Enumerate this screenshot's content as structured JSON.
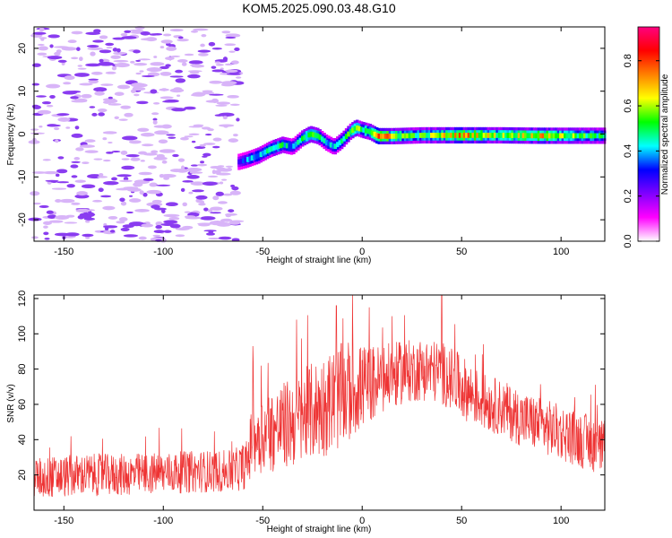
{
  "title": "KOM5.2025.090.03.48.G10",
  "colorbar": {
    "label": "Normalized spectral amplitude",
    "range": [
      0,
      0.95
    ],
    "ticks": [
      "0.0",
      "0.2",
      "0.4",
      "0.6",
      "0.8"
    ],
    "colormap": [
      "#ffffff",
      "#ff00ff",
      "#8000ff",
      "#0000ff",
      "#00ffff",
      "#00ff00",
      "#ffff00",
      "#ff8000",
      "#ff0000",
      "#ff0080"
    ]
  },
  "chart_data": [
    {
      "type": "heatmap",
      "xlabel": "Height of straight line (km)",
      "ylabel": "Frequency (Hz)",
      "xlim": [
        -165,
        122
      ],
      "ylim": [
        -25,
        25
      ],
      "xticks": [
        "-150",
        "-100",
        "-50",
        "0",
        "50",
        "100"
      ],
      "yticks": [
        "-20",
        "-10",
        "0",
        "10",
        "20"
      ],
      "noise_region": {
        "x": [
          -165,
          -62
        ],
        "amplitude": 0.12
      },
      "ridge": {
        "x": [
          -62,
          -58,
          -52,
          -46,
          -40,
          -35,
          -30,
          -26,
          -22,
          -18,
          -14,
          -10,
          -6,
          -3,
          0,
          4,
          8,
          15,
          30,
          50,
          70,
          90,
          110,
          122
        ],
        "freq": [
          -6.5,
          -6,
          -5,
          -3.5,
          -2.5,
          -3,
          -1,
          0,
          -0.5,
          -2,
          -3,
          -1.5,
          0.5,
          1.5,
          1,
          0.5,
          -0.5,
          -0.5,
          -0.3,
          -0.3,
          -0.3,
          -0.4,
          -0.4,
          -0.4
        ],
        "amplitude": [
          0.3,
          0.35,
          0.4,
          0.45,
          0.5,
          0.35,
          0.45,
          0.55,
          0.5,
          0.35,
          0.4,
          0.45,
          0.5,
          0.55,
          0.5,
          0.55,
          0.85,
          0.6,
          0.5,
          0.7,
          0.55,
          0.65,
          0.5,
          0.45
        ]
      }
    },
    {
      "type": "line",
      "xlabel": "Height of straight line (km)",
      "ylabel": "SNR (v/v)",
      "xlim": [
        -165,
        122
      ],
      "ylim": [
        0,
        122
      ],
      "xticks": [
        "-150",
        "-100",
        "-50",
        "0",
        "50",
        "100"
      ],
      "yticks": [
        "20",
        "40",
        "60",
        "80",
        "100",
        "120"
      ],
      "color": "#ee3333",
      "series": [
        {
          "x": [
            -165,
            -140,
            -120,
            -100,
            -80,
            -65,
            -58,
            -55,
            -45,
            -35,
            -25,
            -15,
            -10,
            -5,
            0,
            10,
            20,
            30,
            40,
            50,
            60,
            70,
            80,
            90,
            100,
            110,
            122
          ],
          "values": [
            18,
            20,
            20,
            21,
            22,
            22,
            26,
            42,
            45,
            50,
            56,
            62,
            65,
            68,
            70,
            74,
            78,
            80,
            78,
            70,
            62,
            58,
            52,
            48,
            44,
            40,
            35
          ],
          "spread": [
            12,
            12,
            12,
            12,
            12,
            12,
            14,
            22,
            24,
            26,
            28,
            30,
            30,
            28,
            24,
            20,
            18,
            18,
            18,
            18,
            16,
            16,
            16,
            16,
            16,
            16,
            16
          ],
          "peaks": [
            {
              "x": -55,
              "y": 93
            },
            {
              "x": -33,
              "y": 108
            },
            {
              "x": -13,
              "y": 116
            },
            {
              "x": 15,
              "y": 110
            },
            {
              "x": 40,
              "y": 122
            }
          ]
        }
      ]
    }
  ]
}
